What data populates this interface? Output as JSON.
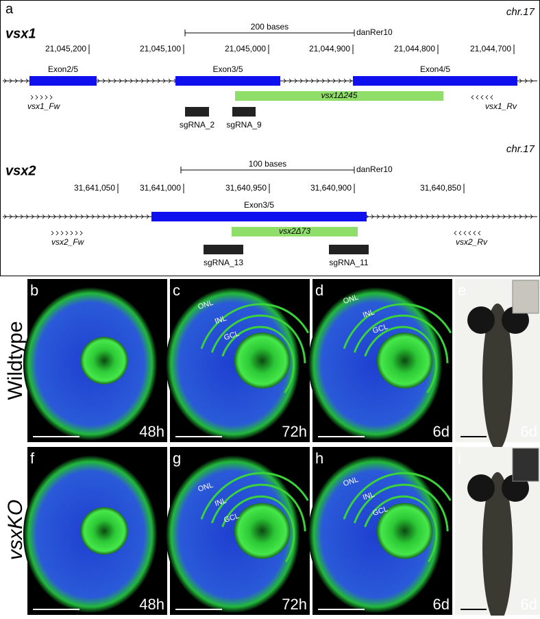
{
  "panel_a": {
    "letter": "a",
    "vsx1": {
      "chrom": "chr.17",
      "gene": "vsx1",
      "scale": "200 bases",
      "assembly": "danRer10",
      "coords": [
        "21,045,200",
        "21,045,100",
        "21,045,000",
        "21,044,900",
        "21,044,800",
        "21,044,700"
      ],
      "exons": [
        "Exon2/5",
        "Exon3/5",
        "Exon4/5"
      ],
      "deletion": "vsx1Δ245",
      "primers": [
        "vsx1_Fw",
        "vsx1_Rv"
      ],
      "sgrnas": [
        "sgRNA_2",
        "sgRNA_9"
      ]
    },
    "vsx2": {
      "chrom": "chr.17",
      "gene": "vsx2",
      "scale": "100 bases",
      "assembly": "danRer10",
      "coords": [
        "31,641,050",
        "31,641,000",
        "31,640,950",
        "31,640,900",
        "31,640,850"
      ],
      "exons": [
        "Exon3/5"
      ],
      "deletion": "vsx2Δ73",
      "primers": [
        "vsx2_Fw",
        "vsx2_Rv"
      ],
      "sgrnas": [
        "sgRNA_13",
        "sgRNA_11"
      ]
    }
  },
  "row_labels": [
    "Wildtype",
    "vsxKO"
  ],
  "panels": [
    {
      "letter": "b",
      "time": "48h"
    },
    {
      "letter": "c",
      "time": "72h",
      "layers": [
        "ONL",
        "INL",
        "GCL"
      ]
    },
    {
      "letter": "d",
      "time": "6d",
      "layers": [
        "ONL",
        "INL",
        "GCL"
      ]
    },
    {
      "letter": "e",
      "time": "6d"
    },
    {
      "letter": "f",
      "time": "48h"
    },
    {
      "letter": "g",
      "time": "72h",
      "layers": [
        "ONL",
        "INL",
        "GCL"
      ]
    },
    {
      "letter": "h",
      "time": "6d",
      "layers": [
        "ONL",
        "INL",
        "GCL"
      ]
    },
    {
      "letter": "i",
      "time": "6d"
    }
  ]
}
